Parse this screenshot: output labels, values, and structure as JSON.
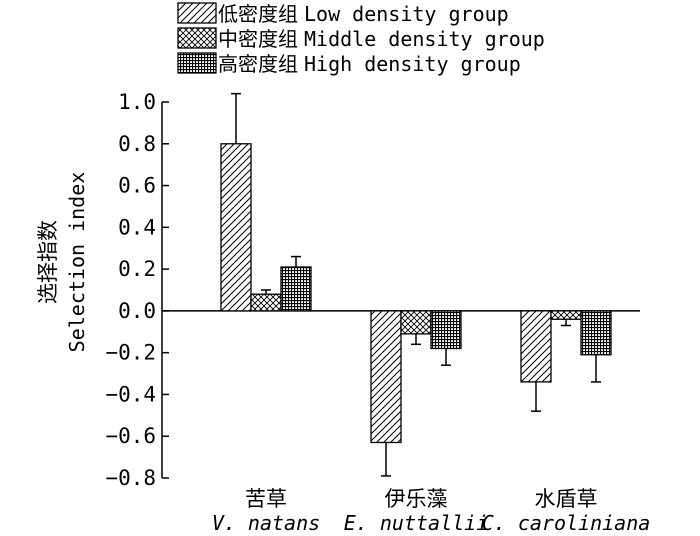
{
  "chart_data": {
    "type": "bar",
    "ylabel_cn": "选择指数",
    "ylabel_en": "Selection index",
    "ylim": [
      -0.8,
      1.0
    ],
    "yticks": [
      "1.0",
      "0.8",
      "0.6",
      "0.4",
      "0.2",
      "0.0",
      "−0.2",
      "−0.4",
      "−0.6",
      "−0.8"
    ],
    "categories": [
      {
        "cn": "苦草",
        "en": "V. natans"
      },
      {
        "cn": "伊乐藻",
        "en": "E. nuttallii"
      },
      {
        "cn": "水盾草",
        "en": "C. caroliniana"
      }
    ],
    "legend_placement": "top",
    "series": [
      {
        "name_cn": "低密度组",
        "name_en": "Low density group",
        "pattern": "diagonal",
        "values": [
          0.8,
          -0.63,
          -0.34
        ],
        "errors": [
          0.24,
          0.16,
          0.14
        ]
      },
      {
        "name_cn": "中密度组",
        "name_en": "Middle density group",
        "pattern": "crosshatch",
        "values": [
          0.08,
          -0.11,
          -0.04
        ],
        "errors": [
          0.02,
          0.05,
          0.03
        ]
      },
      {
        "name_cn": "高密度组",
        "name_en": "High density group",
        "pattern": "grid",
        "values": [
          0.21,
          -0.18,
          -0.21
        ],
        "errors": [
          0.05,
          0.08,
          0.13
        ]
      }
    ]
  }
}
